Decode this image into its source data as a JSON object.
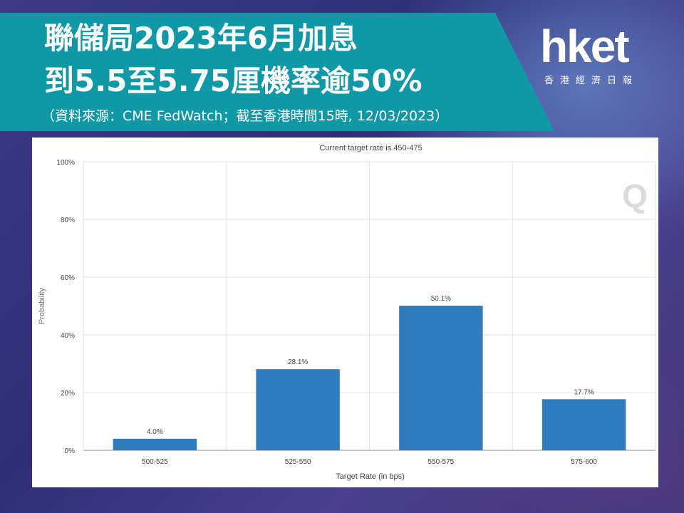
{
  "header": {
    "title_line1": "聯儲局2023年6月加息",
    "title_line2": "到5.5至5.75厘機率逾50%",
    "source": "（資料來源：CME FedWatch；截至香港時間15時, 12/03/2023）"
  },
  "logo": {
    "word": "hket",
    "subtitle": "香港經濟日報"
  },
  "colors": {
    "header_band": "#0f98a6",
    "bar": "#2f7cbf",
    "grid": "#e3e3e3",
    "axis": "#9a9a9a",
    "text": "#444444"
  },
  "chart_data": {
    "type": "bar",
    "title": "Current target rate is 450-475",
    "xlabel": "Target Rate (in bps)",
    "ylabel": "Probability",
    "categories": [
      "500-525",
      "525-550",
      "550-575",
      "575-600"
    ],
    "values": [
      4.0,
      28.1,
      50.1,
      17.7
    ],
    "data_labels": [
      "4.0%",
      "28.1%",
      "50.1%",
      "17.7%"
    ],
    "ylim": [
      0,
      100
    ],
    "yticks": [
      "0%",
      "20%",
      "40%",
      "60%",
      "80%",
      "100%"
    ],
    "ytick_values": [
      0,
      20,
      40,
      60,
      80,
      100
    ],
    "grid": true,
    "watermark": "Q"
  }
}
